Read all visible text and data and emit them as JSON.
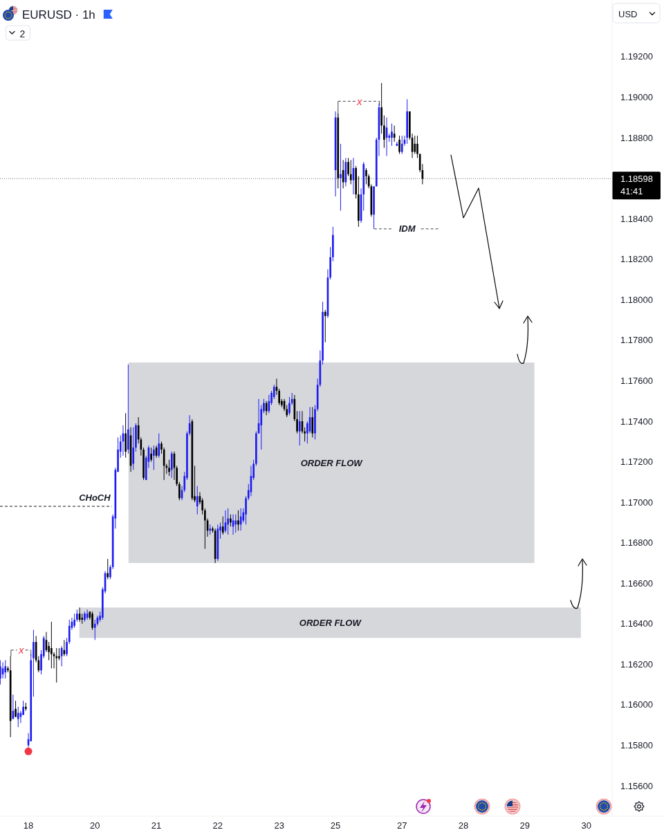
{
  "chart_data": {
    "type": "candlestick",
    "title": "EURUSD · 1h",
    "categories": [
      null,
      null,
      null,
      null,
      null,
      null,
      null,
      null,
      null,
      null,
      null,
      "18",
      null,
      null,
      null,
      null,
      null,
      null,
      null,
      null,
      null,
      null,
      null,
      null,
      null,
      null,
      null,
      null,
      null,
      null,
      null,
      null,
      null,
      null,
      null,
      null,
      null,
      "20",
      null,
      null,
      null,
      null,
      null,
      null,
      null,
      null,
      null,
      null,
      null,
      null,
      null,
      null,
      null,
      null,
      null,
      null,
      null,
      null,
      null,
      null,
      null,
      "21",
      null,
      null,
      null,
      null,
      null,
      null,
      null,
      null,
      null,
      null,
      null,
      null,
      null,
      null,
      null,
      null,
      null,
      null,
      null,
      null,
      null,
      null,
      null,
      "22",
      null,
      null,
      null,
      null,
      null,
      null,
      null,
      null,
      null,
      null,
      null,
      null,
      null,
      null,
      null,
      null,
      null,
      null,
      null,
      null,
      null,
      null,
      null,
      "23",
      null,
      null,
      null,
      null,
      null,
      null,
      null,
      null,
      null,
      null,
      null,
      null,
      null,
      null,
      null,
      null,
      null,
      null,
      null,
      null,
      null,
      "25",
      null,
      null,
      null,
      null,
      null,
      null,
      null,
      null,
      null,
      null,
      null,
      null,
      null,
      null,
      null,
      null,
      null,
      null,
      null,
      null,
      null,
      null,
      null,
      null,
      null,
      "27",
      null,
      null,
      null,
      null,
      null,
      null,
      null,
      null,
      null,
      null,
      null,
      null,
      null,
      null,
      null,
      null,
      null,
      null,
      null,
      null,
      null,
      null,
      null,
      "28",
      null,
      null,
      null,
      null,
      null,
      null,
      null,
      null,
      null,
      null,
      null,
      null,
      null,
      null,
      null,
      null,
      null,
      null,
      null,
      null,
      null,
      null,
      null,
      "29",
      null,
      null,
      null,
      null,
      null,
      null,
      null,
      null,
      null,
      null,
      null,
      null,
      null,
      null,
      null,
      null,
      null,
      null,
      null,
      null,
      null,
      null,
      null,
      "30",
      null,
      null,
      null,
      null,
      null,
      null,
      null,
      null,
      null
    ],
    "ohlc": [
      [
        1.1613,
        1.1622,
        1.161,
        1.1619
      ],
      [
        1.1615,
        1.1621,
        1.1613,
        1.1618
      ],
      [
        1.1616,
        1.1622,
        1.1613,
        1.1619
      ],
      [
        1.1618,
        1.1619,
        1.1616,
        1.1617
      ],
      [
        1.1617,
        1.1624,
        1.1584,
        1.1592
      ],
      [
        1.1593,
        1.1605,
        1.1593,
        1.1597
      ],
      [
        1.1598,
        1.1602,
        1.1594,
        1.1594
      ],
      [
        1.1593,
        1.1599,
        1.1589,
        1.1596
      ],
      [
        1.1594,
        1.1597,
        1.1591,
        1.1596
      ],
      [
        1.1595,
        1.1602,
        1.1595,
        1.1599
      ],
      [
        1.1599,
        1.1601,
        1.1597,
        1.1598
      ],
      [
        1.158,
        1.1586,
        1.1579,
        1.1583
      ],
      [
        1.1582,
        1.1625,
        1.1582,
        1.1622
      ],
      [
        1.1623,
        1.1637,
        1.1604,
        1.1631
      ],
      [
        1.1631,
        1.1634,
        1.1621,
        1.1622
      ],
      [
        1.1622,
        1.1624,
        1.1616,
        1.1617
      ],
      [
        1.1617,
        1.1627,
        1.1615,
        1.1625
      ],
      [
        1.1624,
        1.1634,
        1.1623,
        1.1633
      ],
      [
        1.1632,
        1.1636,
        1.1626,
        1.1627
      ],
      [
        1.1629,
        1.1631,
        1.1622,
        1.1626
      ],
      [
        1.1628,
        1.1641,
        1.1618,
        1.1625
      ],
      [
        1.1625,
        1.1626,
        1.1618,
        1.1624
      ],
      [
        1.1624,
        1.1628,
        1.1611,
        1.1623
      ],
      [
        1.1624,
        1.1628,
        1.1622,
        1.1623
      ],
      [
        1.1624,
        1.1629,
        1.1619,
        1.1628
      ],
      [
        1.1627,
        1.1632,
        1.1624,
        1.1625
      ],
      [
        1.1625,
        1.1633,
        1.1624,
        1.1631
      ],
      [
        1.1631,
        1.1642,
        1.163,
        1.1639
      ],
      [
        1.1638,
        1.1643,
        1.1637,
        1.1641
      ],
      [
        1.1639,
        1.1645,
        1.1638,
        1.1642
      ],
      [
        1.1642,
        1.1647,
        1.1641,
        1.1645
      ],
      [
        1.1645,
        1.1648,
        1.1641,
        1.1642
      ],
      [
        1.1643,
        1.1645,
        1.164,
        1.1642
      ],
      [
        1.1642,
        1.1646,
        1.1641,
        1.1645
      ],
      [
        1.1643,
        1.1647,
        1.1642,
        1.1645
      ],
      [
        1.1646,
        1.1646,
        1.1642,
        1.1643
      ],
      [
        1.1645,
        1.1646,
        1.1637,
        1.1638
      ],
      [
        1.1638,
        1.1642,
        1.1632,
        1.164
      ],
      [
        1.164,
        1.1644,
        1.1639,
        1.1643
      ],
      [
        1.1642,
        1.1646,
        1.1641,
        1.1644
      ],
      [
        1.1643,
        1.1658,
        1.1642,
        1.1657
      ],
      [
        1.1656,
        1.1666,
        1.1655,
        1.1665
      ],
      [
        1.1665,
        1.1672,
        1.1662,
        1.1663
      ],
      [
        1.1663,
        1.1669,
        1.1662,
        1.1668
      ],
      [
        1.1668,
        1.1694,
        1.1667,
        1.1693
      ],
      [
        1.1692,
        1.1717,
        1.1687,
        1.1716
      ],
      [
        1.1715,
        1.1732,
        1.1715,
        1.1726
      ],
      [
        1.1725,
        1.1733,
        1.1722,
        1.173
      ],
      [
        1.173,
        1.1738,
        1.1723,
        1.1734
      ],
      [
        1.1734,
        1.1744,
        1.1722,
        1.1725
      ],
      [
        1.1726,
        1.1768,
        1.1724,
        1.1736
      ],
      [
        1.1733,
        1.1737,
        1.1715,
        1.1718
      ],
      [
        1.1719,
        1.1737,
        1.1716,
        1.1727
      ],
      [
        1.1727,
        1.1739,
        1.1725,
        1.1738
      ],
      [
        1.1738,
        1.1742,
        1.1729,
        1.1731
      ],
      [
        1.1731,
        1.1732,
        1.1723,
        1.1726
      ],
      [
        1.1726,
        1.1727,
        1.1711,
        1.1712
      ],
      [
        1.1711,
        1.1723,
        1.1711,
        1.1722
      ],
      [
        1.172,
        1.1728,
        1.1717,
        1.1727
      ],
      [
        1.1724,
        1.1727,
        1.172,
        1.1721
      ],
      [
        1.1723,
        1.1728,
        1.1716,
        1.1726
      ],
      [
        1.1727,
        1.1728,
        1.1722,
        1.1723
      ],
      [
        1.1723,
        1.1734,
        1.1722,
        1.1729
      ],
      [
        1.1729,
        1.173,
        1.1724,
        1.1726
      ],
      [
        1.1726,
        1.1727,
        1.1711,
        1.1718
      ],
      [
        1.1718,
        1.1719,
        1.1714,
        1.1717
      ],
      [
        1.1717,
        1.1721,
        1.1713,
        1.1715
      ],
      [
        1.1716,
        1.1725,
        1.1712,
        1.1724
      ],
      [
        1.1724,
        1.1725,
        1.1711,
        1.1717
      ],
      [
        1.1717,
        1.1718,
        1.1708,
        1.1709
      ],
      [
        1.1709,
        1.171,
        1.1701,
        1.1702
      ],
      [
        1.1702,
        1.1708,
        1.1701,
        1.1706
      ],
      [
        1.1706,
        1.1715,
        1.1705,
        1.1713
      ],
      [
        1.1712,
        1.1735,
        1.1711,
        1.1734
      ],
      [
        1.1734,
        1.1743,
        1.1733,
        1.1739
      ],
      [
        1.174,
        1.1741,
        1.1701,
        1.1702
      ],
      [
        1.1703,
        1.1718,
        1.17,
        1.1701
      ],
      [
        1.1698,
        1.1708,
        1.1694,
        1.1703
      ],
      [
        1.1703,
        1.1705,
        1.1699,
        1.17
      ],
      [
        1.1701,
        1.1702,
        1.1694,
        1.1696
      ],
      [
        1.1696,
        1.1697,
        1.1677,
        1.1691
      ],
      [
        1.1691,
        1.1692,
        1.1683,
        1.1686
      ],
      [
        1.1686,
        1.1689,
        1.1684,
        1.1687
      ],
      [
        1.1687,
        1.1688,
        1.1685,
        1.1686
      ],
      [
        1.1686,
        1.1687,
        1.167,
        1.1672
      ],
      [
        1.1672,
        1.1689,
        1.1671,
        1.1687
      ],
      [
        1.1686,
        1.169,
        1.1682,
        1.1688
      ],
      [
        1.1688,
        1.1693,
        1.1684,
        1.1685
      ],
      [
        1.1686,
        1.1696,
        1.1685,
        1.169
      ],
      [
        1.1689,
        1.1697,
        1.1684,
        1.1692
      ],
      [
        1.1692,
        1.1694,
        1.1688,
        1.169
      ],
      [
        1.1688,
        1.1694,
        1.1684,
        1.1691
      ],
      [
        1.1689,
        1.1694,
        1.1685,
        1.1691
      ],
      [
        1.1691,
        1.1696,
        1.1686,
        1.1689
      ],
      [
        1.1689,
        1.1697,
        1.1686,
        1.1693
      ],
      [
        1.1691,
        1.1697,
        1.169,
        1.1695
      ],
      [
        1.1694,
        1.1703,
        1.1689,
        1.1702
      ],
      [
        1.1702,
        1.1709,
        1.1701,
        1.1706
      ],
      [
        1.1705,
        1.1718,
        1.1703,
        1.1713
      ],
      [
        1.1712,
        1.1721,
        1.1711,
        1.1719
      ],
      [
        1.1719,
        1.1735,
        1.1718,
        1.1734
      ],
      [
        1.1734,
        1.1751,
        1.1734,
        1.1739
      ],
      [
        1.1738,
        1.1748,
        1.1726,
        1.1746
      ],
      [
        1.1745,
        1.1751,
        1.1744,
        1.1749
      ],
      [
        1.1749,
        1.175,
        1.1743,
        1.1745
      ],
      [
        1.1745,
        1.1753,
        1.1744,
        1.175
      ],
      [
        1.1749,
        1.1755,
        1.1748,
        1.1754
      ],
      [
        1.1752,
        1.1758,
        1.1751,
        1.1757
      ],
      [
        1.1757,
        1.1761,
        1.1753,
        1.1755
      ],
      [
        1.1755,
        1.1756,
        1.1748,
        1.1749
      ],
      [
        1.175,
        1.1751,
        1.1747,
        1.1748
      ],
      [
        1.175,
        1.1751,
        1.1745,
        1.1746
      ],
      [
        1.1746,
        1.1748,
        1.1742,
        1.1743
      ],
      [
        1.1744,
        1.1752,
        1.1743,
        1.1749
      ],
      [
        1.1749,
        1.1754,
        1.1748,
        1.1751
      ],
      [
        1.1751,
        1.1753,
        1.174,
        1.1741
      ],
      [
        1.1741,
        1.1745,
        1.1734,
        1.1735
      ],
      [
        1.1735,
        1.1745,
        1.1728,
        1.174
      ],
      [
        1.174,
        1.1745,
        1.1734,
        1.1735
      ],
      [
        1.1735,
        1.1737,
        1.173,
        1.1734
      ],
      [
        1.1734,
        1.174,
        1.1729,
        1.1739
      ],
      [
        1.1735,
        1.1747,
        1.1734,
        1.1742
      ],
      [
        1.1742,
        1.1747,
        1.1732,
        1.1734
      ],
      [
        1.1734,
        1.1748,
        1.1731,
        1.1746
      ],
      [
        1.1746,
        1.1761,
        1.1745,
        1.1758
      ],
      [
        1.1758,
        1.1775,
        1.1757,
        1.177
      ],
      [
        1.177,
        1.1799,
        1.1768,
        1.1794
      ],
      [
        1.1794,
        1.1795,
        1.1779,
        1.1792
      ],
      [
        1.1792,
        1.1815,
        1.1791,
        1.1811
      ],
      [
        1.1811,
        1.1826,
        1.181,
        1.1821
      ],
      [
        1.1821,
        1.1836,
        1.1819,
        1.1832
      ],
      [
        1.1864,
        1.1893,
        1.1851,
        1.189
      ],
      [
        1.189,
        1.1892,
        1.1855,
        1.186
      ],
      [
        1.186,
        1.1877,
        1.1844,
        1.1862
      ],
      [
        1.1864,
        1.1869,
        1.1855,
        1.1858
      ],
      [
        1.1858,
        1.187,
        1.1856,
        1.1868
      ],
      [
        1.1868,
        1.187,
        1.1861,
        1.1862
      ],
      [
        1.1862,
        1.1869,
        1.1857,
        1.1859
      ],
      [
        1.1859,
        1.187,
        1.1852,
        1.1865
      ],
      [
        1.1865,
        1.1866,
        1.185,
        1.1852
      ],
      [
        1.1852,
        1.1861,
        1.1836,
        1.1839
      ],
      [
        1.1839,
        1.1855,
        1.1838,
        1.1852
      ],
      [
        1.1852,
        1.1868,
        1.1844,
        1.1867
      ],
      [
        1.1864,
        1.1865,
        1.1857,
        1.1861
      ],
      [
        1.1861,
        1.1862,
        1.1855,
        1.1856
      ],
      [
        1.1856,
        1.1857,
        1.1841,
        1.1842
      ],
      [
        1.1842,
        1.1856,
        1.1835,
        1.1856
      ],
      [
        1.1856,
        1.188,
        1.1856,
        1.1879
      ],
      [
        1.1879,
        1.1897,
        1.1871,
        1.1895
      ],
      [
        1.1895,
        1.1907,
        1.1882,
        1.1886
      ],
      [
        1.1886,
        1.1891,
        1.1875,
        1.1879
      ],
      [
        1.188,
        1.189,
        1.1871,
        1.1885
      ],
      [
        1.188,
        1.1882,
        1.1878,
        1.1881
      ],
      [
        1.188,
        1.1887,
        1.1876,
        1.1883
      ],
      [
        1.1882,
        1.1886,
        1.1878,
        1.188
      ],
      [
        1.1876,
        1.1878,
        1.1876,
        1.1877
      ],
      [
        1.1879,
        1.1881,
        1.1872,
        1.1873
      ],
      [
        1.1873,
        1.1881,
        1.1872,
        1.1877
      ],
      [
        1.1877,
        1.1881,
        1.1876,
        1.1879
      ],
      [
        1.188,
        1.1899,
        1.1877,
        1.1893
      ],
      [
        1.1893,
        1.1893,
        1.1879,
        1.188
      ],
      [
        1.188,
        1.1882,
        1.187,
        1.1873
      ],
      [
        1.1877,
        1.1881,
        1.1872,
        1.1873
      ],
      [
        1.1877,
        1.1881,
        1.187,
        1.1872
      ],
      [
        1.1872,
        1.1872,
        1.1863,
        1.1864
      ],
      [
        1.1864,
        1.1867,
        1.1857,
        1.18598
      ],
      null,
      null,
      null,
      null,
      null,
      null,
      null,
      null,
      null,
      null,
      null,
      null,
      null,
      null,
      null,
      null,
      null,
      null,
      null,
      null,
      null,
      null,
      null,
      null,
      null,
      null,
      null,
      null,
      null,
      null,
      null,
      null,
      null,
      null,
      null,
      null,
      null,
      null,
      null,
      null,
      null,
      null,
      null,
      null,
      null,
      null,
      null,
      null,
      null,
      null,
      null,
      null,
      null,
      null,
      null,
      null,
      null,
      null,
      null,
      null,
      null,
      null,
      null,
      null,
      null,
      null,
      null,
      null,
      null,
      null,
      null,
      null,
      null
    ],
    "colors": [
      "#1c1cf0",
      "#1c1cf0",
      "#1c1cf0",
      "#000000",
      "#000000",
      "#1c1cf0",
      "#000000",
      "#1c1cf0",
      "#1c1cf0",
      "#1c1cf0",
      "#000000",
      "#1c1cf0",
      "#1c1cf0",
      "#1c1cf0",
      "#000000",
      "#000000",
      "#1c1cf0",
      "#1c1cf0",
      "#000000",
      "#000000",
      "#000000",
      "#000000",
      "#000000",
      "#000000",
      "#1c1cf0",
      "#000000",
      "#1c1cf0",
      "#1c1cf0",
      "#1c1cf0",
      "#1c1cf0",
      "#1c1cf0",
      "#000000",
      "#000000",
      "#1c1cf0",
      "#1c1cf0",
      "#000000",
      "#000000",
      "#1c1cf0",
      "#1c1cf0",
      "#1c1cf0",
      "#1c1cf0",
      "#1c1cf0",
      "#000000",
      "#1c1cf0",
      "#1c1cf0",
      "#1c1cf0",
      "#1c1cf0",
      "#1c1cf0",
      "#1c1cf0",
      "#000000",
      "#1c1cf0",
      "#000000",
      "#1c1cf0",
      "#1c1cf0",
      "#000000",
      "#000000",
      "#000000",
      "#1c1cf0",
      "#1c1cf0",
      "#000000",
      "#1c1cf0",
      "#000000",
      "#1c1cf0",
      "#000000",
      "#000000",
      "#000000",
      "#000000",
      "#1c1cf0",
      "#000000",
      "#000000",
      "#000000",
      "#1c1cf0",
      "#1c1cf0",
      "#1c1cf0",
      "#1c1cf0",
      "#000000",
      "#000000",
      "#1c1cf0",
      "#000000",
      "#000000",
      "#000000",
      "#000000",
      "#1c1cf0",
      "#000000",
      "#000000",
      "#1c1cf0",
      "#1c1cf0",
      "#000000",
      "#1c1cf0",
      "#1c1cf0",
      "#000000",
      "#1c1cf0",
      "#1c1cf0",
      "#000000",
      "#1c1cf0",
      "#1c1cf0",
      "#1c1cf0",
      "#1c1cf0",
      "#1c1cf0",
      "#1c1cf0",
      "#1c1cf0",
      "#1c1cf0",
      "#1c1cf0",
      "#1c1cf0",
      "#000000",
      "#1c1cf0",
      "#1c1cf0",
      "#1c1cf0",
      "#000000",
      "#000000",
      "#000000",
      "#000000",
      "#000000",
      "#1c1cf0",
      "#1c1cf0",
      "#000000",
      "#000000",
      "#1c1cf0",
      "#000000",
      "#000000",
      "#1c1cf0",
      "#1c1cf0",
      "#000000",
      "#1c1cf0",
      "#1c1cf0",
      "#1c1cf0",
      "#1c1cf0",
      "#000000",
      "#1c1cf0",
      "#1c1cf0",
      "#1c1cf0",
      "#1c1cf0",
      "#000000",
      "#1c1cf0",
      "#000000",
      "#1c1cf0",
      "#000000",
      "#000000",
      "#1c1cf0",
      "#000000",
      "#000000",
      "#1c1cf0",
      "#1c1cf0",
      "#000000",
      "#000000",
      "#000000",
      "#1c1cf0",
      "#1c1cf0",
      "#1c1cf0",
      "#000000",
      "#000000",
      "#1c1cf0",
      "#1c1cf0",
      "#1c1cf0",
      "#000000",
      "#1c1cf0",
      "#000000",
      "#1c1cf0",
      "#1c1cf0",
      "#1c1cf0",
      "#000000",
      "#000000",
      "#000000",
      "#000000",
      "#000000",
      "#000000",
      null,
      null,
      null,
      null,
      null,
      null,
      null,
      null,
      null,
      null,
      null,
      null,
      null,
      null,
      null,
      null,
      null,
      null,
      null,
      null,
      null,
      null,
      null,
      null,
      null,
      null,
      null,
      null,
      null,
      null,
      null,
      null,
      null,
      null,
      null,
      null,
      null,
      null,
      null,
      null,
      null,
      null,
      null,
      null,
      null,
      null,
      null,
      null,
      null,
      null,
      null,
      null,
      null,
      null,
      null,
      null,
      null,
      null,
      null,
      null,
      null,
      null,
      null,
      null,
      null,
      null,
      null,
      null,
      null,
      null,
      null,
      null,
      null
    ],
    "series": [
      {
        "type": "scatter",
        "color": "#f23645",
        "marker": "circle",
        "values": [
          null,
          null,
          null,
          null,
          null,
          null,
          null,
          null,
          null,
          null,
          null,
          1.1577,
          null,
          null,
          null,
          null,
          null,
          null,
          null,
          null,
          null,
          null,
          null,
          null,
          null,
          null,
          null,
          null,
          null,
          null,
          null,
          null,
          null,
          null,
          null,
          null,
          null,
          null,
          null,
          null,
          null,
          null,
          null,
          null,
          null,
          null,
          null,
          null,
          null,
          null,
          null,
          null,
          null,
          null,
          null,
          null,
          null,
          null,
          null,
          null,
          null,
          null,
          null,
          null,
          null,
          null,
          null,
          null,
          null,
          null,
          null,
          null,
          null,
          null,
          null,
          null,
          null,
          null,
          null,
          null,
          null,
          null,
          null,
          null,
          null,
          null,
          null,
          null,
          null,
          null,
          null,
          null,
          null,
          null,
          null,
          null,
          null,
          null,
          null,
          null,
          null,
          null,
          null,
          null,
          null,
          null,
          null,
          null,
          null,
          null,
          null,
          null,
          null,
          null,
          null,
          null,
          null,
          null,
          null,
          null,
          null,
          null,
          null,
          null,
          null,
          null,
          null,
          null,
          null,
          null,
          null,
          null,
          null,
          null,
          null,
          null,
          null,
          null,
          null,
          null,
          null,
          null,
          null,
          null,
          null,
          null,
          null,
          null,
          null,
          null,
          null,
          null,
          null,
          null,
          null,
          null,
          null,
          null,
          null,
          null,
          null,
          null,
          null,
          null,
          null,
          null,
          null,
          null,
          null,
          null,
          null,
          null,
          null,
          null,
          null,
          null,
          null,
          null,
          null,
          null,
          null,
          null,
          null,
          null,
          null,
          null,
          null,
          null,
          null,
          null,
          null,
          null,
          null,
          null,
          null,
          null,
          null,
          null,
          null,
          null,
          null,
          null,
          null,
          null,
          null,
          null,
          null,
          null,
          null,
          null,
          null,
          null,
          null,
          null,
          null,
          null,
          null,
          null,
          null,
          null,
          null,
          null,
          null,
          null,
          null,
          null,
          null,
          null,
          null,
          null,
          null,
          null,
          null,
          null,
          null,
          null,
          null,
          null,
          null
        ]
      }
    ],
    "ylim": [
      1.1545,
      1.1948
    ],
    "yticks": [
      {
        "value": 1.156,
        "label": "1.15600"
      },
      {
        "value": 1.158,
        "label": "1.15800"
      },
      {
        "value": 1.16,
        "label": "1.16000"
      },
      {
        "value": 1.162,
        "label": "1.16200"
      },
      {
        "value": 1.164,
        "label": "1.16400"
      },
      {
        "value": 1.166,
        "label": "1.16600"
      },
      {
        "value": 1.168,
        "label": "1.16800"
      },
      {
        "value": 1.17,
        "label": "1.17000"
      },
      {
        "value": 1.172,
        "label": "1.17200"
      },
      {
        "value": 1.174,
        "label": "1.17400"
      },
      {
        "value": 1.176,
        "label": "1.17600"
      },
      {
        "value": 1.178,
        "label": "1.17800"
      },
      {
        "value": 1.18,
        "label": "1.18000"
      },
      {
        "value": 1.182,
        "label": "1.18200"
      },
      {
        "value": 1.184,
        "label": "1.18400"
      },
      {
        "value": 1.188,
        "label": "1.18800"
      },
      {
        "value": 1.19,
        "label": "1.19000"
      },
      {
        "value": 1.192,
        "label": "1.19200"
      }
    ],
    "bands": [
      {
        "axis": "y",
        "from": 1.167,
        "to": 1.1769,
        "label": "ORDER FLOW",
        "color": "#d6d7db"
      },
      {
        "axis": "y",
        "from": 1.1633,
        "to": 1.1648,
        "label": "ORDER FLOW",
        "color": "#d6d7db"
      }
    ],
    "ref_lines": [
      {
        "axis": "y",
        "value": 1.1698,
        "label": "CHoCH",
        "color": "#131722",
        "line_style": "dashed"
      },
      {
        "axis": "y",
        "value": 1.1627,
        "label": "x",
        "color": "#434651",
        "line_style": "dashed"
      },
      {
        "axis": "y",
        "value": 1.1898,
        "label": "x",
        "color": "#434651",
        "line_style": "dashed"
      },
      {
        "axis": "y",
        "value": 1.1835,
        "label": "IDM",
        "color": "#434651",
        "line_style": "dashed"
      },
      {
        "axis": "y",
        "value": 1.18598,
        "label": "1.18598\n41:41",
        "color": "#6a6d78",
        "line_style": "dotted"
      }
    ],
    "annotations": [
      "2",
      "USD"
    ]
  }
}
